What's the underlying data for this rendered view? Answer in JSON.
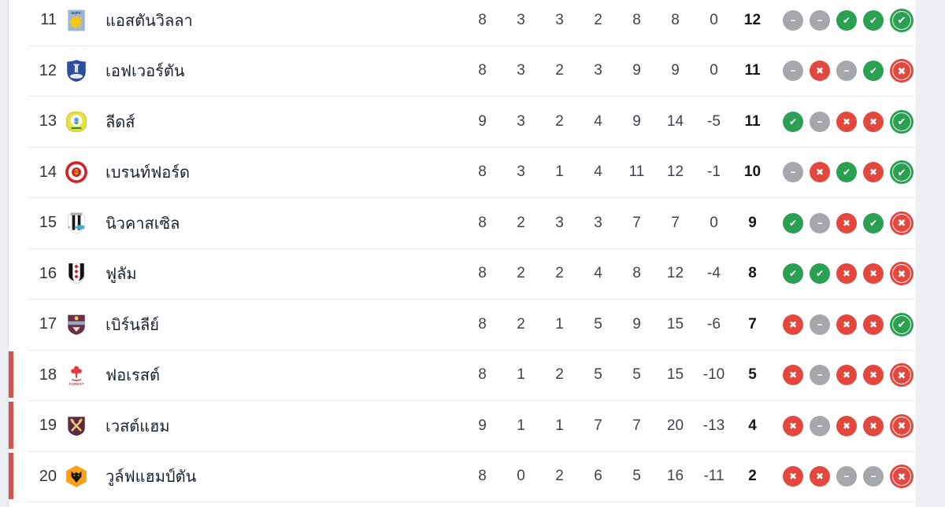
{
  "colors": {
    "win": "#2ba052",
    "loss": "#e2483d",
    "draw": "#a5a7ab",
    "relegation_bar": "#d9534f",
    "points_text": "#15171c"
  },
  "form_symbols": {
    "win": "✔",
    "loss": "✖",
    "draw": "−"
  },
  "table": {
    "rows": [
      {
        "position": "11",
        "team": "แอสตันวิลลา",
        "crest": "aston-villa-crest",
        "played": "8",
        "won": "3",
        "drawn": "3",
        "lost": "2",
        "goals_for": "8",
        "goals_against": "8",
        "goal_diff": "0",
        "points": "12",
        "form": [
          "draw",
          "draw",
          "win",
          "win",
          "win"
        ],
        "relegation_zone": false
      },
      {
        "position": "12",
        "team": "เอฟเวอร์ตัน",
        "crest": "everton-crest",
        "played": "8",
        "won": "3",
        "drawn": "2",
        "lost": "3",
        "goals_for": "9",
        "goals_against": "9",
        "goal_diff": "0",
        "points": "11",
        "form": [
          "draw",
          "loss",
          "draw",
          "win",
          "loss"
        ],
        "relegation_zone": false
      },
      {
        "position": "13",
        "team": "ลีดส์",
        "crest": "leeds-crest",
        "played": "9",
        "won": "3",
        "drawn": "2",
        "lost": "4",
        "goals_for": "9",
        "goals_against": "14",
        "goal_diff": "-5",
        "points": "11",
        "form": [
          "win",
          "draw",
          "loss",
          "loss",
          "win"
        ],
        "relegation_zone": false
      },
      {
        "position": "14",
        "team": "เบรนท์ฟอร์ด",
        "crest": "brentford-crest",
        "played": "8",
        "won": "3",
        "drawn": "1",
        "lost": "4",
        "goals_for": "11",
        "goals_against": "12",
        "goal_diff": "-1",
        "points": "10",
        "form": [
          "draw",
          "loss",
          "win",
          "loss",
          "win"
        ],
        "relegation_zone": false
      },
      {
        "position": "15",
        "team": "นิวคาสเซิล",
        "crest": "newcastle-crest",
        "played": "8",
        "won": "2",
        "drawn": "3",
        "lost": "3",
        "goals_for": "7",
        "goals_against": "7",
        "goal_diff": "0",
        "points": "9",
        "form": [
          "win",
          "draw",
          "loss",
          "win",
          "loss"
        ],
        "relegation_zone": false
      },
      {
        "position": "16",
        "team": "ฟูลัม",
        "crest": "fulham-crest",
        "played": "8",
        "won": "2",
        "drawn": "2",
        "lost": "4",
        "goals_for": "8",
        "goals_against": "12",
        "goal_diff": "-4",
        "points": "8",
        "form": [
          "win",
          "win",
          "loss",
          "loss",
          "loss"
        ],
        "relegation_zone": false
      },
      {
        "position": "17",
        "team": "เบิร์นลีย์",
        "crest": "burnley-crest",
        "played": "8",
        "won": "2",
        "drawn": "1",
        "lost": "5",
        "goals_for": "9",
        "goals_against": "15",
        "goal_diff": "-6",
        "points": "7",
        "form": [
          "loss",
          "draw",
          "loss",
          "loss",
          "win"
        ],
        "relegation_zone": false
      },
      {
        "position": "18",
        "team": "ฟอเรสต์",
        "crest": "forest-crest",
        "played": "8",
        "won": "1",
        "drawn": "2",
        "lost": "5",
        "goals_for": "5",
        "goals_against": "15",
        "goal_diff": "-10",
        "points": "5",
        "form": [
          "loss",
          "draw",
          "loss",
          "loss",
          "loss"
        ],
        "relegation_zone": true
      },
      {
        "position": "19",
        "team": "เวสต์แฮม",
        "crest": "west-ham-crest",
        "played": "9",
        "won": "1",
        "drawn": "1",
        "lost": "7",
        "goals_for": "7",
        "goals_against": "20",
        "goal_diff": "-13",
        "points": "4",
        "form": [
          "loss",
          "draw",
          "loss",
          "loss",
          "loss"
        ],
        "relegation_zone": true
      },
      {
        "position": "20",
        "team": "วูล์ฟแฮมป์ตัน",
        "crest": "wolves-crest",
        "played": "8",
        "won": "0",
        "drawn": "2",
        "lost": "6",
        "goals_for": "5",
        "goals_against": "16",
        "goal_diff": "-11",
        "points": "2",
        "form": [
          "loss",
          "loss",
          "draw",
          "draw",
          "loss"
        ],
        "relegation_zone": true
      }
    ]
  }
}
